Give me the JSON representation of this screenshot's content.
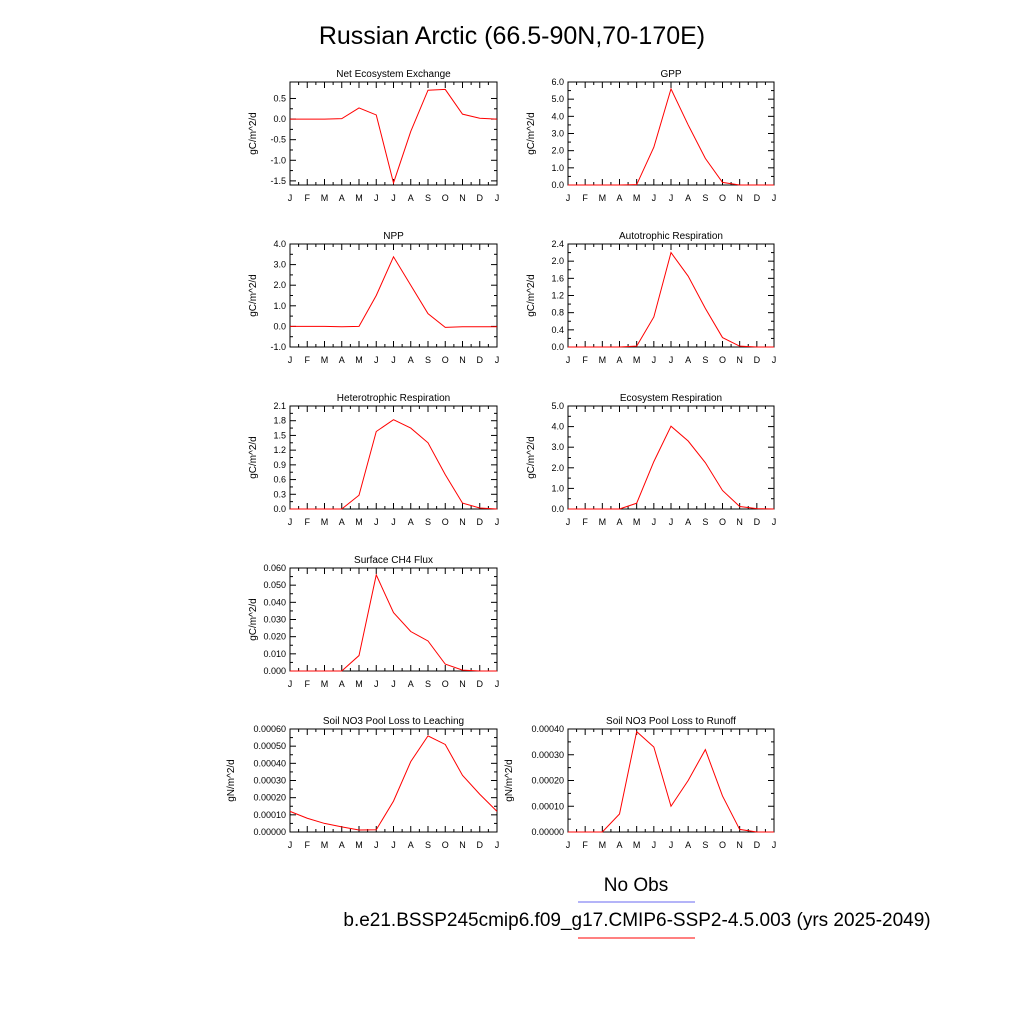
{
  "title": "Russian Arctic (66.5-90N,70-170E)",
  "months": [
    "J",
    "F",
    "M",
    "A",
    "M",
    "J",
    "J",
    "A",
    "S",
    "O",
    "N",
    "D",
    "J"
  ],
  "legend": {
    "obs_label": "No Obs",
    "case_label": "b.e21.BSSP245cmip6.f09_g17.CMIP6-SSP2-4.5.003 (yrs 2025-2049)",
    "obs_color": "#6a6af0",
    "case_color": "#ff0000"
  },
  "chart_data": [
    {
      "type": "line",
      "title": "Net Ecosystem Exchange",
      "ylabel": "gC/m^2/d",
      "ylim": [
        -1.6,
        0.9
      ],
      "yticks": [
        "0.5",
        "0.0",
        "-0.5",
        "-1.0",
        "-1.5"
      ],
      "x": [
        1,
        2,
        3,
        4,
        5,
        6,
        7,
        8,
        9,
        10,
        11,
        12,
        13
      ],
      "series": [
        {
          "color": "#ff0000",
          "values": [
            0.0,
            0.0,
            0.0,
            0.01,
            0.27,
            0.1,
            -1.55,
            -0.3,
            0.7,
            0.72,
            0.12,
            0.02,
            0.0
          ]
        }
      ]
    },
    {
      "type": "line",
      "title": "GPP",
      "ylabel": "gC/m^2/d",
      "ylim": [
        0.0,
        6.0
      ],
      "yticks": [
        "6.0",
        "5.0",
        "4.0",
        "3.0",
        "2.0",
        "1.0",
        "0.0"
      ],
      "x": [
        1,
        2,
        3,
        4,
        5,
        6,
        7,
        8,
        9,
        10,
        11,
        12,
        13
      ],
      "series": [
        {
          "color": "#ff0000",
          "values": [
            0.0,
            0.0,
            0.0,
            0.0,
            0.02,
            2.2,
            5.6,
            3.5,
            1.55,
            0.15,
            0.0,
            0.0,
            0.0
          ]
        }
      ]
    },
    {
      "type": "line",
      "title": "NPP",
      "ylabel": "gC/m^2/d",
      "ylim": [
        -1.0,
        4.0
      ],
      "yticks": [
        "4.0",
        "3.0",
        "2.0",
        "1.0",
        "0.0",
        "-1.0"
      ],
      "x": [
        1,
        2,
        3,
        4,
        5,
        6,
        7,
        8,
        9,
        10,
        11,
        12,
        13
      ],
      "series": [
        {
          "color": "#ff0000",
          "values": [
            0.0,
            0.0,
            0.0,
            -0.02,
            0.0,
            1.5,
            3.38,
            2.0,
            0.62,
            -0.05,
            -0.02,
            -0.02,
            -0.02
          ]
        }
      ]
    },
    {
      "type": "line",
      "title": "Autotrophic Respiration",
      "ylabel": "gC/m^2/d",
      "ylim": [
        0.0,
        2.4
      ],
      "yticks": [
        "2.4",
        "2.0",
        "1.6",
        "1.2",
        "0.8",
        "0.4",
        "0.0"
      ],
      "x": [
        1,
        2,
        3,
        4,
        5,
        6,
        7,
        8,
        9,
        10,
        11,
        12,
        13
      ],
      "series": [
        {
          "color": "#ff0000",
          "values": [
            0.0,
            0.0,
            0.0,
            0.0,
            0.02,
            0.7,
            2.2,
            1.65,
            0.9,
            0.22,
            0.02,
            0.0,
            0.0
          ]
        }
      ]
    },
    {
      "type": "line",
      "title": "Heterotrophic Respiration",
      "ylabel": "gC/m^2/d",
      "ylim": [
        0.0,
        2.1
      ],
      "yticks": [
        "2.1",
        "1.8",
        "1.5",
        "1.2",
        "0.9",
        "0.6",
        "0.3",
        "0.0"
      ],
      "x": [
        1,
        2,
        3,
        4,
        5,
        6,
        7,
        8,
        9,
        10,
        11,
        12,
        13
      ],
      "series": [
        {
          "color": "#ff0000",
          "values": [
            0.0,
            0.0,
            0.0,
            0.0,
            0.28,
            1.58,
            1.82,
            1.65,
            1.35,
            0.7,
            0.12,
            0.02,
            0.0
          ]
        }
      ]
    },
    {
      "type": "line",
      "title": "Ecosystem Respiration",
      "ylabel": "gC/m^2/d",
      "ylim": [
        0.0,
        5.0
      ],
      "yticks": [
        "5.0",
        "4.0",
        "3.0",
        "2.0",
        "1.0",
        "0.0"
      ],
      "x": [
        1,
        2,
        3,
        4,
        5,
        6,
        7,
        8,
        9,
        10,
        11,
        12,
        13
      ],
      "series": [
        {
          "color": "#ff0000",
          "values": [
            0.0,
            0.0,
            0.0,
            0.0,
            0.28,
            2.3,
            4.02,
            3.3,
            2.25,
            0.9,
            0.12,
            0.02,
            0.0
          ]
        }
      ]
    },
    {
      "type": "line",
      "title": "Surface CH4 Flux",
      "ylabel": "gC/m^2/d",
      "ylim": [
        0.0,
        0.06
      ],
      "yticks": [
        "0.060",
        "0.050",
        "0.040",
        "0.030",
        "0.020",
        "0.010",
        "0.000"
      ],
      "x": [
        1,
        2,
        3,
        4,
        5,
        6,
        7,
        8,
        9,
        10,
        11,
        12,
        13
      ],
      "series": [
        {
          "color": "#ff0000",
          "values": [
            0.0,
            0.0,
            0.0,
            0.0,
            0.009,
            0.056,
            0.034,
            0.023,
            0.0175,
            0.004,
            0.0005,
            0.0,
            0.0
          ]
        }
      ]
    },
    {
      "type": "line",
      "title": "Soil NO3 Pool Loss to Leaching",
      "ylabel": "gN/m^2/d",
      "ylim": [
        0.0,
        0.0006
      ],
      "yticks": [
        "0.00060",
        "0.00050",
        "0.00040",
        "0.00030",
        "0.00020",
        "0.00010",
        "0.00000"
      ],
      "x": [
        1,
        2,
        3,
        4,
        5,
        6,
        7,
        8,
        9,
        10,
        11,
        12,
        13
      ],
      "series": [
        {
          "color": "#ff0000",
          "values": [
            0.00012,
            8e-05,
            5e-05,
            3e-05,
            1.2e-05,
            1.3e-05,
            0.00018,
            0.00041,
            0.00056,
            0.00051,
            0.00033,
            0.00022,
            0.00012
          ]
        }
      ]
    },
    {
      "type": "line",
      "title": "Soil NO3 Pool Loss to Runoff",
      "ylabel": "gN/m^2/d",
      "ylim": [
        0.0,
        0.0004
      ],
      "yticks": [
        "0.00040",
        "0.00030",
        "0.00020",
        "0.00010",
        "0.00000"
      ],
      "x": [
        1,
        2,
        3,
        4,
        5,
        6,
        7,
        8,
        9,
        10,
        11,
        12,
        13
      ],
      "series": [
        {
          "color": "#ff0000",
          "values": [
            0.0,
            0.0,
            0.0,
            7e-05,
            0.00039,
            0.00033,
            0.0001,
            0.0002,
            0.00032,
            0.00014,
            1e-05,
            0.0,
            0.0
          ]
        }
      ]
    }
  ]
}
